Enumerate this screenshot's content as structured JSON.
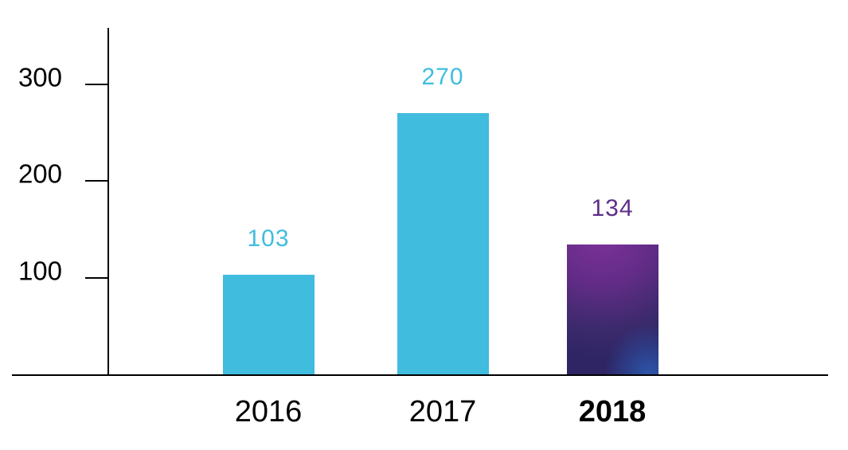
{
  "chart_data": {
    "type": "bar",
    "title": "",
    "xlabel": "",
    "ylabel": "",
    "categories": [
      "2016",
      "2017",
      "2018"
    ],
    "values": [
      103,
      270,
      134
    ],
    "value_labels": [
      "103",
      "270",
      "134"
    ],
    "yticks": [
      300,
      200,
      100
    ],
    "ylim": [
      0,
      360
    ],
    "grid": false,
    "legend": null,
    "highlight_index": 2,
    "colors": {
      "bar": "#40BCDE",
      "value_label": "#41BDDE",
      "highlight_value_label": "#5E2D89",
      "highlight_gradient_purple": "#7E329A",
      "highlight_gradient_indigo": "#2F2565",
      "highlight_gradient_blue": "#2B5AAF",
      "axis": "#000000",
      "tick_label": "#000000",
      "category_label": "#000000"
    }
  }
}
